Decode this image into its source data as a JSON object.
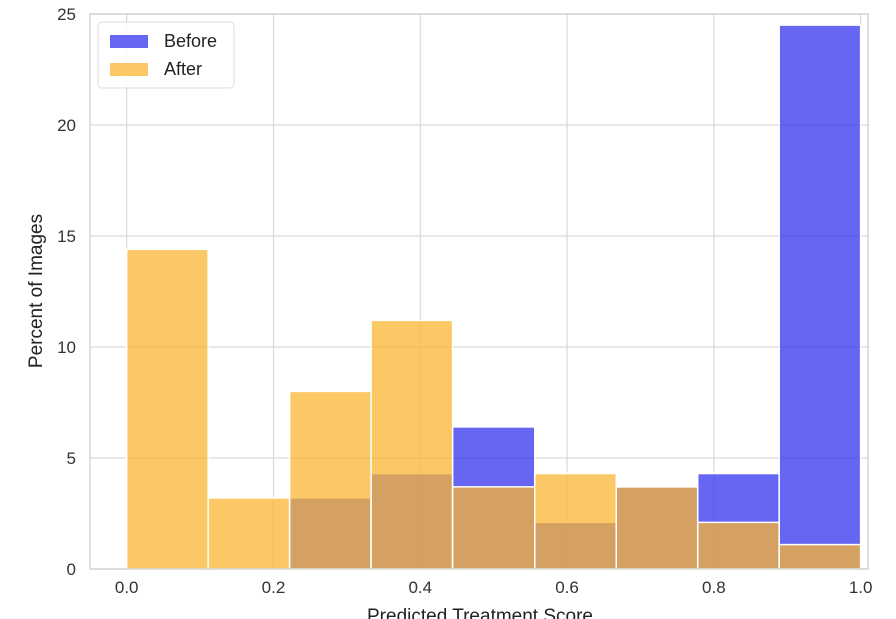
{
  "chart_data": {
    "type": "bar",
    "xlabel": "Predicted Treatment Score",
    "ylabel": "Percent of Images",
    "xlim": [
      -0.05,
      1.01
    ],
    "ylim": [
      0,
      25
    ],
    "xticks": [
      "0.0",
      "0.2",
      "0.4",
      "0.6",
      "0.8",
      "1.0"
    ],
    "xtick_values": [
      0.0,
      0.2,
      0.4,
      0.6,
      0.8,
      1.0
    ],
    "yticks": [
      "0",
      "5",
      "10",
      "15",
      "20",
      "25"
    ],
    "ytick_values": [
      0,
      5,
      10,
      15,
      20,
      25
    ],
    "grid": true,
    "legend_position": "top-left",
    "bin_edges": [
      0.0,
      0.111,
      0.222,
      0.333,
      0.444,
      0.556,
      0.667,
      0.778,
      0.889,
      1.0
    ],
    "series": [
      {
        "name": "Before",
        "color": "#3333ee",
        "values": [
          0.0,
          0.0,
          3.2,
          4.3,
          6.4,
          2.1,
          3.7,
          4.3,
          24.5
        ]
      },
      {
        "name": "After",
        "color": "#fbb531",
        "values": [
          14.4,
          3.2,
          8.0,
          11.2,
          3.7,
          4.3,
          3.7,
          2.1,
          1.1
        ]
      }
    ]
  }
}
